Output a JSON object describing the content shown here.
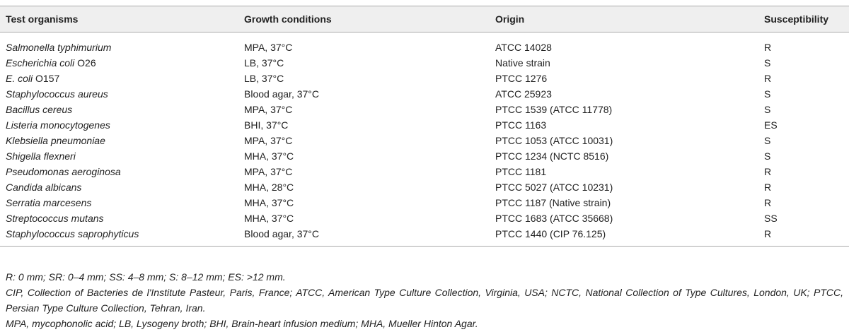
{
  "table": {
    "header": [
      "Test organisms",
      "Growth conditions",
      "Origin",
      "Susceptibility"
    ],
    "rows": [
      [
        {
          "name": "Salmonella typhimurium"
        },
        "MPA, 37°C",
        "ATCC 14028",
        "R"
      ],
      [
        {
          "name": "Escherichia coli",
          "strain": "O26"
        },
        "LB, 37°C",
        "Native strain",
        "S"
      ],
      [
        {
          "name": "E. coli",
          "strain": "O157"
        },
        "LB, 37°C",
        "PTCC 1276",
        "R"
      ],
      [
        {
          "name": "Staphylococcus aureus"
        },
        "Blood agar, 37°C",
        "ATCC 25923",
        "S"
      ],
      [
        {
          "name": "Bacillus cereus"
        },
        "MPA, 37°C",
        "PTCC 1539 (ATCC 11778)",
        "S"
      ],
      [
        {
          "name": "Listeria monocytogenes"
        },
        "BHI, 37°C",
        "PTCC 1163",
        "ES"
      ],
      [
        {
          "name": "Klebsiella pneumoniae"
        },
        "MPA, 37°C",
        "PTCC 1053 (ATCC 10031)",
        "S"
      ],
      [
        {
          "name": "Shigella flexneri"
        },
        "MHA, 37°C",
        "PTCC 1234 (NCTC 8516)",
        "S"
      ],
      [
        {
          "name": "Pseudomonas aeroginosa"
        },
        "MPA, 37°C",
        "PTCC 1181",
        "R"
      ],
      [
        {
          "name": "Candida albicans"
        },
        "MHA, 28°C",
        "PTCC 5027 (ATCC 10231)",
        "R"
      ],
      [
        {
          "name": "Serratia marcesens"
        },
        "MHA, 37°C",
        "PTCC 1187 (Native strain)",
        "R"
      ],
      [
        {
          "name": "Streptococcus mutans"
        },
        "MHA, 37°C",
        "PTCC 1683 (ATCC 35668)",
        "SS"
      ],
      [
        {
          "name": "Staphylococcus saprophyticus"
        },
        "Blood agar, 37°C",
        "PTCC 1440 (CIP 76.125)",
        "R"
      ]
    ]
  },
  "footnotes": [
    "R: 0 mm; SR: 0–4 mm; SS: 4–8 mm; S: 8–12 mm; ES: >12 mm.",
    "CIP, Collection of Bacteries de l'Institute Pasteur, Paris, France; ATCC, American Type Culture Collection, Virginia, USA; NCTC, National Collection of Type Cultures, London, UK; PTCC, Persian Type Culture Collection, Tehran, Iran.",
    "MPA, mycophonolic acid; LB, Lysogeny broth; BHI, Brain-heart infusion medium; MHA, Mueller Hinton Agar."
  ]
}
